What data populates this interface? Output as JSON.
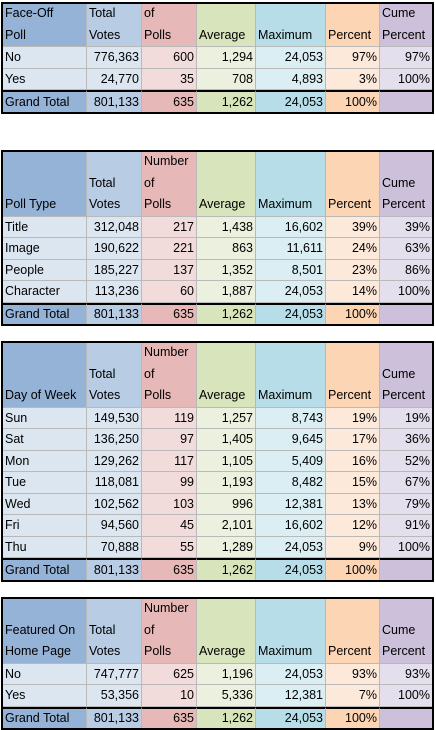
{
  "colors": {
    "label_header": "#95b3d7",
    "label_body": "#dce6f1",
    "votes_header": "#b8cce4",
    "votes_body": "#dce6f1",
    "polls_header": "#e6b8b7",
    "polls_body": "#f2dcdb",
    "avg_header": "#d8e4bc",
    "avg_body": "#ebf1de",
    "max_header": "#b7dee8",
    "max_body": "#daeef3",
    "pct_header": "#fcd5b4",
    "pct_body": "#fde9d9",
    "cume_header": "#ccc0da",
    "cume_body": "#e4dfec"
  },
  "tables": [
    {
      "header": [
        "Face-Off\nPoll",
        "Total\nVotes",
        "Number\nof\nPolls",
        "Average",
        "Maximum",
        "Percent",
        "Cume\nPercent"
      ],
      "rows": [
        [
          "No",
          "776,363",
          "600",
          "1,294",
          "24,053",
          "97%",
          "97%"
        ],
        [
          "Yes",
          "24,770",
          "35",
          "708",
          "4,893",
          "3%",
          "100%"
        ]
      ],
      "total": [
        "Grand Total",
        "801,133",
        "635",
        "1,262",
        "24,053",
        "100%",
        ""
      ]
    },
    {
      "header": [
        "Poll Type",
        "Total\nVotes",
        "Number\nof\nPolls",
        "Average",
        "Maximum",
        "Percent",
        "Cume\nPercent"
      ],
      "rows": [
        [
          "Title",
          "312,048",
          "217",
          "1,438",
          "16,602",
          "39%",
          "39%"
        ],
        [
          "Image",
          "190,622",
          "221",
          "863",
          "11,611",
          "24%",
          "63%"
        ],
        [
          "People",
          "185,227",
          "137",
          "1,352",
          "8,501",
          "23%",
          "86%"
        ],
        [
          "Character",
          "113,236",
          "60",
          "1,887",
          "24,053",
          "14%",
          "100%"
        ]
      ],
      "total": [
        "Grand Total",
        "801,133",
        "635",
        "1,262",
        "24,053",
        "100%",
        ""
      ]
    },
    {
      "header": [
        "Day of Week",
        "Total\nVotes",
        "Number\nof\nPolls",
        "Average",
        "Maximum",
        "Percent",
        "Cume\nPercent"
      ],
      "rows": [
        [
          "Sun",
          "149,530",
          "119",
          "1,257",
          "8,743",
          "19%",
          "19%"
        ],
        [
          "Sat",
          "136,250",
          "97",
          "1,405",
          "9,645",
          "17%",
          "36%"
        ],
        [
          "Mon",
          "129,262",
          "117",
          "1,105",
          "5,409",
          "16%",
          "52%"
        ],
        [
          "Tue",
          "118,081",
          "99",
          "1,193",
          "8,482",
          "15%",
          "67%"
        ],
        [
          "Wed",
          "102,562",
          "103",
          "996",
          "12,381",
          "13%",
          "79%"
        ],
        [
          "Fri",
          "94,560",
          "45",
          "2,101",
          "16,602",
          "12%",
          "91%"
        ],
        [
          "Thu",
          "70,888",
          "55",
          "1,289",
          "24,053",
          "9%",
          "100%"
        ]
      ],
      "total": [
        "Grand Total",
        "801,133",
        "635",
        "1,262",
        "24,053",
        "100%",
        ""
      ]
    },
    {
      "header": [
        "Featured On\nHome Page",
        "Total\nVotes",
        "Number\nof\nPolls",
        "Average",
        "Maximum",
        "Percent",
        "Cume\nPercent"
      ],
      "rows": [
        [
          "No",
          "747,777",
          "625",
          "1,196",
          "24,053",
          "93%",
          "93%"
        ],
        [
          "Yes",
          "53,356",
          "10",
          "5,336",
          "12,381",
          "7%",
          "100%"
        ]
      ],
      "total": [
        "Grand Total",
        "801,133",
        "635",
        "1,262",
        "24,053",
        "100%",
        ""
      ]
    }
  ]
}
